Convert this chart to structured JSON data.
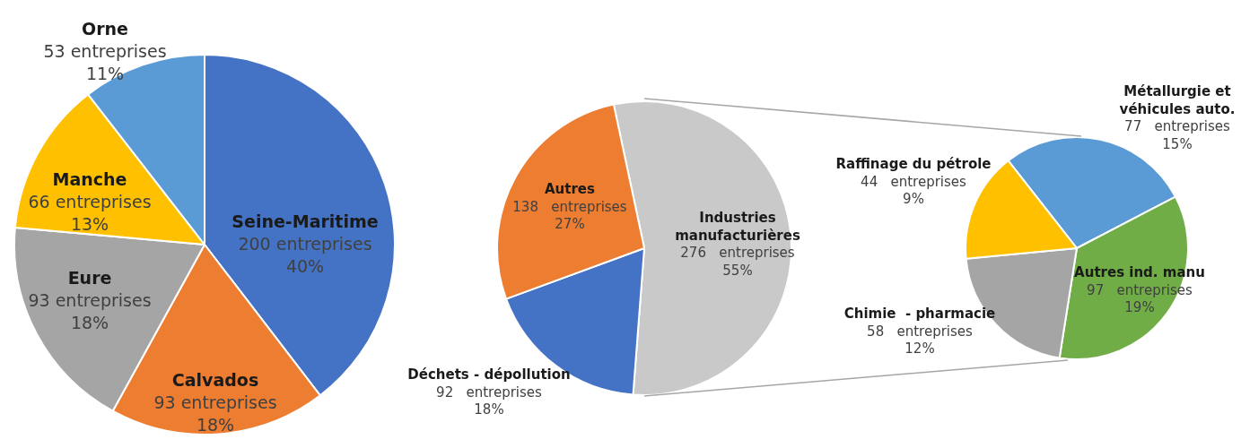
{
  "chart_data": [
    {
      "type": "pie",
      "categories": [
        "Seine-Maritime",
        "Calvados",
        "Eure",
        "Manche",
        "Orne"
      ],
      "values": [
        200,
        93,
        93,
        66,
        53
      ],
      "colors": [
        "#4472c4",
        "#ed7d31",
        "#a5a5a5",
        "#ffc000",
        "#5b9bd5"
      ],
      "value_labels": [
        "200 entreprises\n40%",
        "93 entreprises\n18%",
        "93 entreprises\n18%",
        "66 entreprises\n13%",
        "53 entreprises\n11%"
      ]
    },
    {
      "type": "pie",
      "categories": [
        "Industries manufacturières",
        "Déchets - dépollution",
        "Autres"
      ],
      "values": [
        276,
        92,
        138
      ],
      "colors": [
        "#c9c9c9",
        "#4472c4",
        "#ed7d31"
      ],
      "value_labels": [
        "276   entreprises\n55%",
        "92   entreprises\n18%",
        "138   entreprises\n27%"
      ]
    },
    {
      "type": "pie",
      "categories": [
        "Métallurgie et véhicules auto.",
        "Autres ind. manu",
        "Chimie  - pharmacie",
        "Raffinage du pétrole"
      ],
      "values": [
        77,
        97,
        58,
        44
      ],
      "colors": [
        "#5b9bd5",
        "#70ad47",
        "#a5a5a5",
        "#ffc000"
      ],
      "value_labels": [
        "77   entreprises\n15%",
        "97   entreprises\n19%",
        "58   entreprises\n12%",
        "44   entreprises\n9%"
      ]
    }
  ]
}
